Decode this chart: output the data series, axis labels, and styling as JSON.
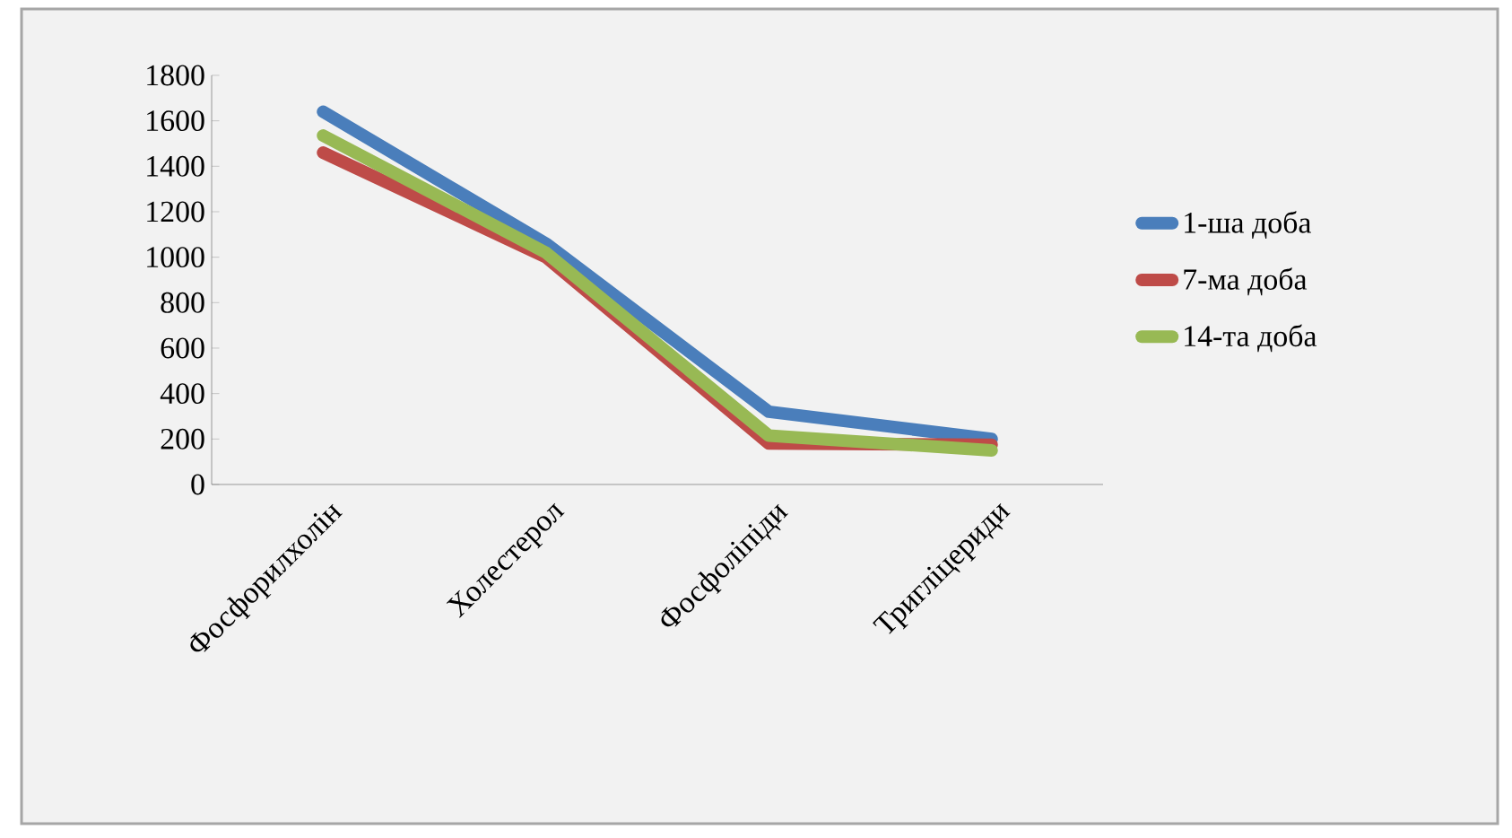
{
  "chart_data": {
    "type": "line",
    "categories": [
      "Фосфорилхолін",
      "Холестерол",
      "Фосфоліпіди",
      "Тригліцериди"
    ],
    "series": [
      {
        "name": "1-ша доба",
        "color": "#4a7ebb",
        "values": [
          1640,
          1060,
          320,
          200
        ]
      },
      {
        "name": "7-ма доба",
        "color": "#be4b48",
        "values": [
          1460,
          1000,
          180,
          175
        ]
      },
      {
        "name": "14-та доба",
        "color": "#98b954",
        "values": [
          1535,
          1020,
          215,
          150
        ]
      }
    ],
    "ylim": [
      0,
      1800
    ],
    "yticks": [
      0,
      200,
      400,
      600,
      800,
      1000,
      1200,
      1400,
      1600,
      1800
    ],
    "grid": false,
    "legend": "right",
    "marker": "none",
    "line_style": "solid"
  }
}
